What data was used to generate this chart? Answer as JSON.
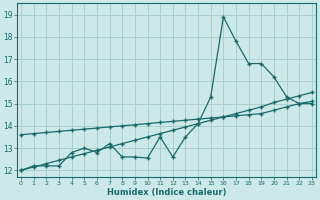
{
  "xlabel": "Humidex (Indice chaleur)",
  "background_color": "#cce8e8",
  "grid_color": "#aacece",
  "line_color": "#1a6b6b",
  "x_ticks": [
    0,
    1,
    2,
    3,
    4,
    5,
    6,
    7,
    8,
    9,
    10,
    11,
    12,
    13,
    14,
    15,
    16,
    17,
    18,
    19,
    20,
    21,
    22,
    23
  ],
  "y_ticks": [
    12,
    13,
    14,
    15,
    16,
    17,
    18,
    19
  ],
  "xlim": [
    -0.3,
    23.3
  ],
  "ylim": [
    11.7,
    19.5
  ],
  "line1_x": [
    0,
    1,
    2,
    3,
    4,
    5,
    6,
    7,
    8,
    9,
    10,
    11,
    12,
    13,
    14,
    15,
    16,
    17,
    18,
    19,
    20,
    21,
    22,
    23
  ],
  "line1_y": [
    12.0,
    12.2,
    12.2,
    12.2,
    12.8,
    13.0,
    12.8,
    13.2,
    12.6,
    12.6,
    12.55,
    13.5,
    12.6,
    13.5,
    14.1,
    15.3,
    18.9,
    17.8,
    16.8,
    16.8,
    16.2,
    15.3,
    15.0,
    15.0
  ],
  "line2_x": [
    0,
    1,
    2,
    3,
    4,
    5,
    6,
    7,
    8,
    9,
    10,
    11,
    12,
    13,
    14,
    15,
    16,
    17,
    18,
    19,
    20,
    21,
    22,
    23
  ],
  "line2_y": [
    12.0,
    12.15,
    12.3,
    12.45,
    12.6,
    12.75,
    12.9,
    13.05,
    13.2,
    13.35,
    13.5,
    13.65,
    13.8,
    13.95,
    14.1,
    14.25,
    14.4,
    14.55,
    14.7,
    14.85,
    15.05,
    15.2,
    15.35,
    15.5
  ],
  "line3_x": [
    0,
    1,
    2,
    3,
    4,
    5,
    6,
    7,
    8,
    9,
    10,
    11,
    12,
    13,
    14,
    15,
    16,
    17,
    18,
    19,
    20,
    21,
    22,
    23
  ],
  "line3_y": [
    13.6,
    13.65,
    13.7,
    13.75,
    13.8,
    13.85,
    13.9,
    13.95,
    14.0,
    14.05,
    14.1,
    14.15,
    14.2,
    14.25,
    14.3,
    14.35,
    14.4,
    14.45,
    14.5,
    14.55,
    14.7,
    14.85,
    15.0,
    15.1
  ]
}
